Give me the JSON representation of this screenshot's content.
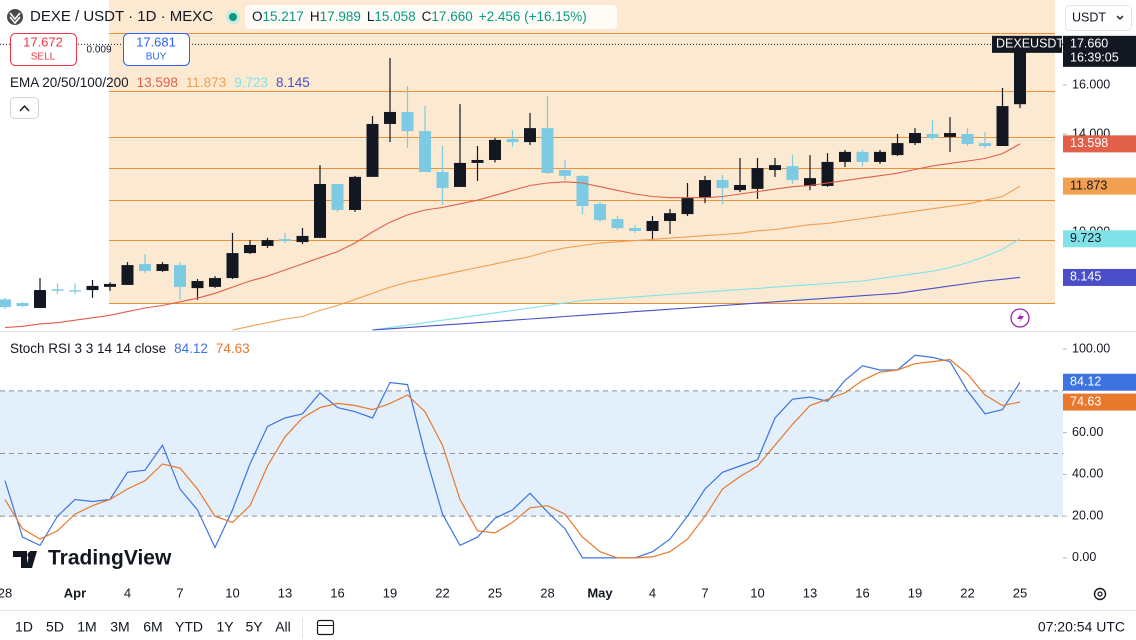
{
  "header": {
    "symbol": "DEXE / USDT · 1D · MEXC",
    "ohlc": [
      {
        "label": "O",
        "value": "15.217"
      },
      {
        "label": "H",
        "value": "17.989"
      },
      {
        "label": "L",
        "value": "15.058"
      },
      {
        "label": "C",
        "value": "17.660"
      }
    ],
    "change": "+2.456 (+16.15%)",
    "symbol_tag": "DEXEUSDT",
    "countdown": "16:39:05"
  },
  "trade": {
    "sell_price": "17.672",
    "sell": "SELL",
    "spread": "0.009",
    "buy_price": "17.681",
    "buy": "BUY"
  },
  "currency": "USDT",
  "logo": "TradingView",
  "chart_data": [
    {
      "type": "candlestick",
      "legend_title": "EMA 20/50/100/200",
      "categories": [
        "28",
        null,
        null,
        null,
        "Apr",
        null,
        null,
        "4",
        null,
        null,
        "7",
        null,
        null,
        "10",
        null,
        null,
        "13",
        null,
        null,
        "16",
        null,
        null,
        "19",
        null,
        null,
        "22",
        null,
        null,
        "25",
        null,
        null,
        "28",
        null,
        null,
        "May",
        null,
        null,
        "4",
        null,
        null,
        "7",
        null,
        null,
        "10",
        null,
        null,
        "13",
        null,
        null,
        "16",
        null,
        null,
        "19",
        null,
        null,
        "22",
        null,
        null,
        "25"
      ],
      "open": [
        7.25,
        7.1,
        6.9,
        7.66,
        7.62,
        7.63,
        7.76,
        7.84,
        8.69,
        8.41,
        8.65,
        7.71,
        7.76,
        8.12,
        9.14,
        9.43,
        9.71,
        9.59,
        9.76,
        11.96,
        10.9,
        12.25,
        14.41,
        14.9,
        14.12,
        12.45,
        11.84,
        12.82,
        12.94,
        13.8,
        13.67,
        14.24,
        12.53,
        12.29,
        11.14,
        10.53,
        10.16,
        10.04,
        10.45,
        10.73,
        11.39,
        12.12,
        11.71,
        11.76,
        12.53,
        12.69,
        11.88,
        11.88,
        12.86,
        13.27,
        12.86,
        13.14,
        13.63,
        14.0,
        13.88,
        14.0,
        13.63,
        13.51,
        15.217
      ],
      "high": [
        7.31,
        7.15,
        8.12,
        7.9,
        7.9,
        8.04,
        7.95,
        8.77,
        9.1,
        8.77,
        8.77,
        8.08,
        8.2,
        9.96,
        9.67,
        9.76,
        9.96,
        10.16,
        12.73,
        11.96,
        12.29,
        14.73,
        17.1,
        15.96,
        15.14,
        13.51,
        15.22,
        13.51,
        13.84,
        14.16,
        14.86,
        15.55,
        12.94,
        12.33,
        11.31,
        10.65,
        10.29,
        10.65,
        10.94,
        12.0,
        12.29,
        12.33,
        13.02,
        13.02,
        13.02,
        13.14,
        13.14,
        13.22,
        13.35,
        13.35,
        13.35,
        14.0,
        14.24,
        14.57,
        14.69,
        14.24,
        14.08,
        15.88,
        17.989
      ],
      "low": [
        6.86,
        6.93,
        6.9,
        7.47,
        7.47,
        7.31,
        7.6,
        7.84,
        8.33,
        8.37,
        7.23,
        7.23,
        7.72,
        8.08,
        9.1,
        9.35,
        9.55,
        9.51,
        9.76,
        10.82,
        10.82,
        12.25,
        13.67,
        13.43,
        12.45,
        11.1,
        11.84,
        12.08,
        12.84,
        13.47,
        13.55,
        12.37,
        12.12,
        10.73,
        10.41,
        10.08,
        9.96,
        9.67,
        9.92,
        10.65,
        11.18,
        11.14,
        11.63,
        11.35,
        12.25,
        11.96,
        11.71,
        11.84,
        12.65,
        12.69,
        12.78,
        13.1,
        13.55,
        13.76,
        13.27,
        13.51,
        13.43,
        13.51,
        15.058
      ],
      "close": [
        6.94,
        6.98,
        7.63,
        7.6,
        7.57,
        7.8,
        7.88,
        8.65,
        8.41,
        8.69,
        7.76,
        8.0,
        8.12,
        9.14,
        9.47,
        9.67,
        9.63,
        9.84,
        11.96,
        10.9,
        12.25,
        14.41,
        14.9,
        14.12,
        12.45,
        11.8,
        12.82,
        12.94,
        13.76,
        13.67,
        14.24,
        12.41,
        12.29,
        11.06,
        10.49,
        10.16,
        10.04,
        10.45,
        10.77,
        11.39,
        12.12,
        11.8,
        11.92,
        12.61,
        12.73,
        12.12,
        12.2,
        12.86,
        13.27,
        12.86,
        13.27,
        13.63,
        14.04,
        13.84,
        14.04,
        13.59,
        13.51,
        15.14,
        17.66
      ],
      "up_color": "#131722",
      "down_color": "#7ccbe3",
      "series": [
        {
          "color": "#e0604a",
          "values": [
            6.1,
            6.15,
            6.25,
            6.3,
            6.4,
            6.5,
            6.6,
            6.75,
            6.9,
            7.0,
            7.15,
            7.3,
            7.5,
            7.75,
            8.0,
            8.2,
            8.45,
            8.7,
            8.95,
            9.2,
            9.55,
            10.0,
            10.4,
            10.7,
            10.9,
            11.0,
            11.15,
            11.3,
            11.5,
            11.7,
            11.9,
            12.0,
            12.05,
            12.0,
            11.85,
            11.7,
            11.55,
            11.45,
            11.4,
            11.4,
            11.4,
            11.45,
            11.55,
            11.65,
            11.75,
            11.85,
            11.9,
            12.0,
            12.1,
            12.2,
            12.3,
            12.4,
            12.55,
            12.7,
            12.8,
            12.9,
            13.0,
            13.2,
            13.598
          ]
        },
        {
          "color": "#f0a050",
          "values": [
            null,
            null,
            null,
            null,
            null,
            null,
            null,
            null,
            null,
            null,
            null,
            null,
            null,
            6.0,
            6.15,
            6.3,
            6.45,
            6.55,
            6.8,
            7.0,
            7.25,
            7.5,
            7.75,
            7.95,
            8.1,
            8.25,
            8.4,
            8.55,
            8.7,
            8.85,
            9.0,
            9.2,
            9.35,
            9.45,
            9.55,
            9.6,
            9.65,
            9.7,
            9.75,
            9.8,
            9.85,
            9.9,
            9.95,
            10.05,
            10.1,
            10.2,
            10.3,
            10.35,
            10.45,
            10.55,
            10.65,
            10.75,
            10.85,
            10.95,
            11.05,
            11.15,
            11.3,
            11.45,
            11.873
          ]
        },
        {
          "color": "#7fe3e8",
          "values": [
            null,
            null,
            null,
            null,
            null,
            null,
            null,
            null,
            null,
            null,
            null,
            null,
            null,
            null,
            null,
            null,
            null,
            null,
            null,
            null,
            null,
            6.0,
            6.1,
            6.2,
            6.3,
            6.4,
            6.5,
            6.6,
            6.7,
            6.8,
            6.9,
            7.0,
            7.1,
            7.2,
            7.25,
            7.3,
            7.35,
            7.4,
            7.45,
            7.5,
            7.55,
            7.6,
            7.65,
            7.7,
            7.75,
            7.8,
            7.85,
            7.9,
            7.95,
            8.0,
            8.1,
            8.2,
            8.3,
            8.4,
            8.55,
            8.75,
            9.0,
            9.3,
            9.723
          ]
        },
        {
          "color": "#4a4fc8",
          "values": [
            null,
            null,
            null,
            null,
            null,
            null,
            null,
            null,
            null,
            null,
            null,
            null,
            null,
            null,
            null,
            null,
            null,
            null,
            null,
            null,
            null,
            6.0,
            6.05,
            6.1,
            6.15,
            6.2,
            6.25,
            6.3,
            6.35,
            6.4,
            6.45,
            6.5,
            6.55,
            6.6,
            6.65,
            6.7,
            6.75,
            6.8,
            6.85,
            6.9,
            6.95,
            7.0,
            7.05,
            7.1,
            7.15,
            7.2,
            7.25,
            7.3,
            7.35,
            7.4,
            7.45,
            7.5,
            7.6,
            7.7,
            7.8,
            7.9,
            8.0,
            8.07,
            8.145
          ]
        }
      ],
      "ylim": [
        6.0,
        19.47
      ],
      "yticks": [
        {
          "value": 10,
          "label": "10.000"
        },
        {
          "value": 14,
          "label": "14.000"
        },
        {
          "value": 16,
          "label": "16.000"
        }
      ],
      "grid": false
    },
    {
      "type": "line",
      "legend_title": "Stoch RSI 3 3 14 14 close",
      "series": [
        {
          "color": "#3d74e0",
          "values": [
            37,
            10,
            6,
            20,
            28,
            27,
            28,
            41,
            42,
            54,
            33,
            23,
            5,
            23,
            45,
            63,
            67,
            69,
            79,
            72,
            70,
            67,
            84,
            83,
            50,
            21,
            6,
            10,
            19,
            23,
            31,
            22,
            14,
            0,
            0,
            0,
            0,
            3,
            9,
            20,
            33,
            41,
            44,
            47,
            67,
            76,
            77,
            75,
            85,
            92,
            90,
            90,
            97,
            96,
            94,
            80,
            69,
            71,
            84.12
          ]
        },
        {
          "color": "#e8782c",
          "values": [
            28,
            14,
            9,
            13,
            21,
            25,
            28,
            33,
            37,
            45,
            43,
            33,
            20,
            17,
            25,
            44,
            58,
            67,
            72,
            74,
            73,
            71,
            74,
            78,
            70,
            54,
            28,
            13,
            12,
            17,
            24,
            25,
            21,
            10,
            3,
            0,
            0,
            0.5,
            3,
            9,
            20,
            33,
            39,
            44,
            54,
            64,
            73,
            76,
            79,
            85,
            89,
            90,
            93,
            94,
            95,
            88,
            78,
            73,
            74.63
          ]
        }
      ],
      "hlines": [
        20,
        50,
        80
      ],
      "ylim": [
        -12,
        107.7
      ],
      "yticks": [
        {
          "value": 100,
          "label": "100.00"
        },
        {
          "value": 60,
          "label": "60.00"
        },
        {
          "value": 40,
          "label": "40.00"
        },
        {
          "value": 20,
          "label": "20.00"
        },
        {
          "value": 0,
          "label": "0.00"
        }
      ],
      "grid": false
    }
  ],
  "footer": {
    "ranges": [
      "1D",
      "5D",
      "1M",
      "3M",
      "6M",
      "YTD",
      "1Y",
      "5Y",
      "All"
    ],
    "time": "07:20:54 UTC"
  }
}
